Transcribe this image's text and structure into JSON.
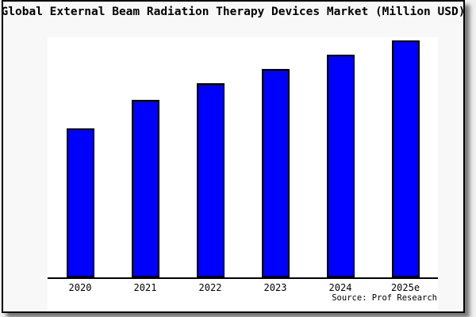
{
  "chart_data": {
    "type": "bar",
    "title": "Global External Beam Radiation Therapy Devices Market (Million USD)",
    "categories": [
      "2020",
      "2021",
      "2022",
      "2023",
      "2024",
      "2025e"
    ],
    "values": [
      63,
      75,
      82,
      88,
      94,
      100
    ],
    "value_note": "No numeric y-axis is shown in the chart; values are relative bar heights with the tallest bar (2025e) normalized to 100",
    "xlabel": "",
    "ylabel": "",
    "grid": false,
    "legend_position": "none",
    "source": "Source: Prof Research",
    "colors": {
      "bar_fill": "#0000ff",
      "bar_border": "#000000",
      "axis": "#000000",
      "plot_bg": "#ffffff",
      "figure_bg": "#f8f8f8"
    }
  }
}
